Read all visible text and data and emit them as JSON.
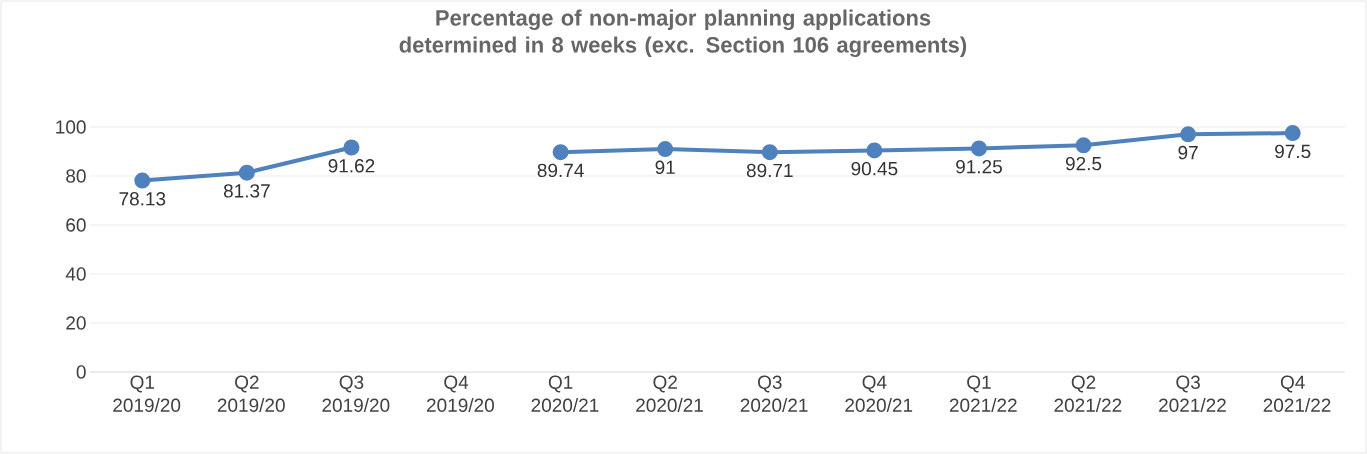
{
  "chart_data": {
    "type": "line",
    "title": "Percentage of non-major planning applications determined in 8 weeks (exc. Section 106 agreements)",
    "categories": [
      "Q1 2019/20",
      "Q2 2019/20",
      "Q3 2019/20",
      "Q4 2019/20",
      "Q1 2020/21",
      "Q2 2020/21",
      "Q3 2020/21",
      "Q4 2020/21",
      "Q1 2021/22",
      "Q2 2021/22",
      "Q3 2021/22",
      "Q4 2021/22"
    ],
    "values": [
      78.13,
      81.37,
      91.62,
      null,
      89.74,
      91,
      89.71,
      90.45,
      91.25,
      92.5,
      97,
      97.5
    ],
    "color": "#4f81bd",
    "ylim": [
      0,
      100
    ],
    "yticks": [
      0,
      20,
      40,
      60,
      80,
      100
    ],
    "grid": "y",
    "marker": "circle",
    "line_style": "solid",
    "data_labels": true
  }
}
